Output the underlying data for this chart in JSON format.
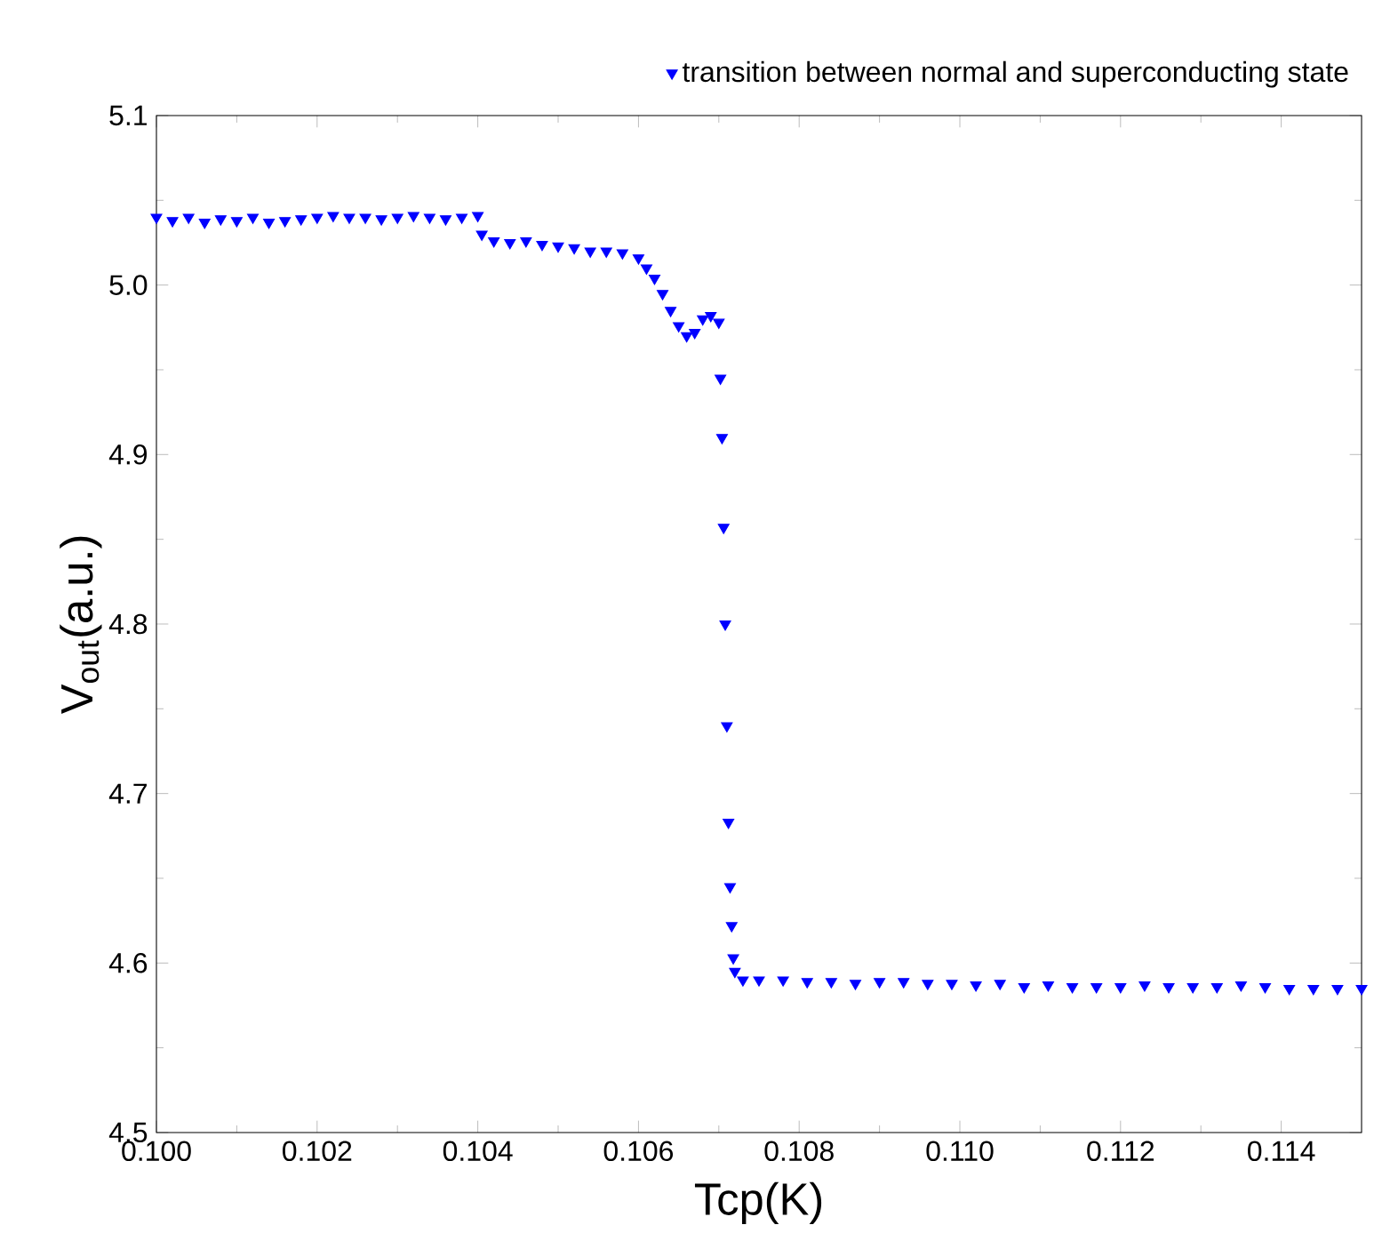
{
  "chart_data": {
    "type": "scatter",
    "xlabel": "Tcp(K)",
    "ylabel": "V$_{out}$(a.u.)",
    "xlim": [
      0.1,
      0.115
    ],
    "ylim": [
      4.5,
      5.1
    ],
    "xticks": [
      {
        "value": 0.1,
        "label": "0.100"
      },
      {
        "value": 0.102,
        "label": "0.102"
      },
      {
        "value": 0.104,
        "label": "0.104"
      },
      {
        "value": 0.106,
        "label": "0.106"
      },
      {
        "value": 0.108,
        "label": "0.108"
      },
      {
        "value": 0.11,
        "label": "0.110"
      },
      {
        "value": 0.112,
        "label": "0.112"
      },
      {
        "value": 0.114,
        "label": "0.114"
      }
    ],
    "yticks": [
      4.5,
      4.6,
      4.7,
      4.8,
      4.9,
      {
        "value": 5.0,
        "label": "5.0"
      },
      5.1
    ],
    "marker": "triangle",
    "legend": "top right",
    "grid": false,
    "series": [
      {
        "name": "transition between normal and superconducting state",
        "color": "#0000ff",
        "x": [
          0.1,
          0.1002,
          0.1004,
          0.1006,
          0.1008,
          0.101,
          0.1012,
          0.1014,
          0.1016,
          0.1018,
          0.102,
          0.1022,
          0.1024,
          0.1026,
          0.1028,
          0.103,
          0.1032,
          0.1034,
          0.1036,
          0.1038,
          0.104,
          0.10405,
          0.1042,
          0.1044,
          0.1046,
          0.1048,
          0.105,
          0.1052,
          0.1054,
          0.1056,
          0.1058,
          0.106,
          0.1061,
          0.1062,
          0.1063,
          0.1064,
          0.1065,
          0.1066,
          0.1067,
          0.1068,
          0.1069,
          0.107,
          0.10702,
          0.10704,
          0.10706,
          0.10708,
          0.1071,
          0.10712,
          0.10714,
          0.10716,
          0.10718,
          0.1072,
          0.1073,
          0.1075,
          0.1078,
          0.1081,
          0.1084,
          0.1087,
          0.109,
          0.1093,
          0.1096,
          0.1099,
          0.1102,
          0.1105,
          0.1108,
          0.1111,
          0.1114,
          0.1117,
          0.112,
          0.1123,
          0.1126,
          0.1129,
          0.1132,
          0.1135,
          0.1138,
          0.1141,
          0.1144,
          0.1147,
          0.115
        ],
        "values": [
          5.04,
          5.038,
          5.04,
          5.037,
          5.039,
          5.038,
          5.04,
          5.037,
          5.038,
          5.039,
          5.04,
          5.041,
          5.04,
          5.04,
          5.039,
          5.04,
          5.041,
          5.04,
          5.039,
          5.04,
          5.041,
          5.03,
          5.026,
          5.025,
          5.026,
          5.024,
          5.023,
          5.022,
          5.02,
          5.02,
          5.019,
          5.016,
          5.01,
          5.004,
          4.995,
          4.985,
          4.976,
          4.97,
          4.972,
          4.98,
          4.982,
          4.978,
          4.945,
          4.91,
          4.857,
          4.8,
          4.74,
          4.683,
          4.645,
          4.622,
          4.603,
          4.595,
          4.59,
          4.59,
          4.59,
          4.589,
          4.589,
          4.588,
          4.589,
          4.589,
          4.588,
          4.588,
          4.587,
          4.588,
          4.586,
          4.587,
          4.586,
          4.586,
          4.586,
          4.587,
          4.586,
          4.586,
          4.586,
          4.587,
          4.586,
          4.585,
          4.585,
          4.585,
          4.585
        ]
      }
    ]
  }
}
